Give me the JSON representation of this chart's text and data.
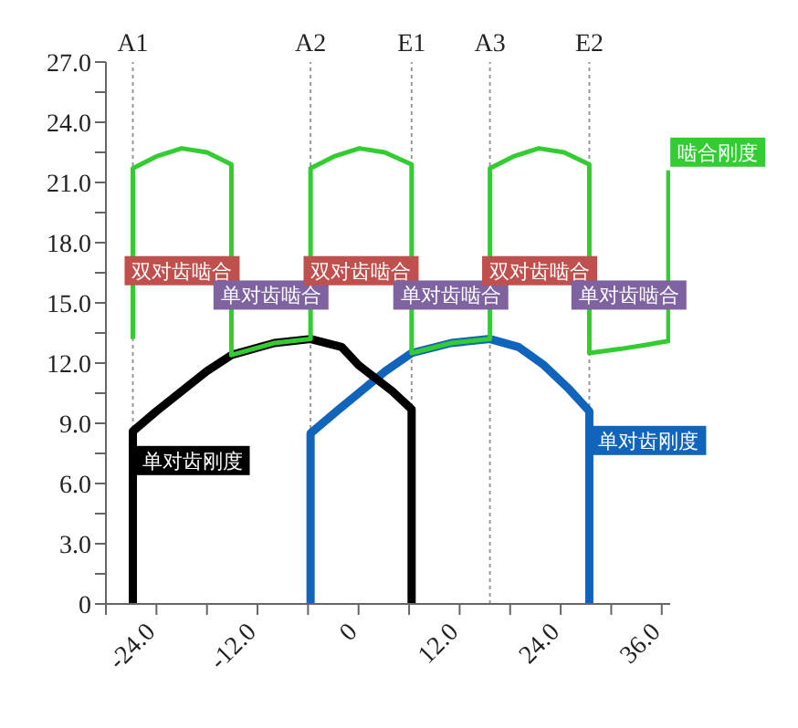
{
  "chart_data": {
    "type": "line",
    "xlim": [
      -30,
      37
    ],
    "ylim": [
      0,
      27
    ],
    "xticks": [
      {
        "value": -30,
        "label": null
      },
      {
        "value": -24,
        "label": "-24.0"
      },
      {
        "value": -18,
        "label": null
      },
      {
        "value": -12,
        "label": "-12.0"
      },
      {
        "value": -6,
        "label": null
      },
      0,
      {
        "value": 6,
        "label": null
      },
      {
        "value": 12,
        "label": "12.0"
      },
      {
        "value": 18,
        "label": null
      },
      {
        "value": 24,
        "label": "24.0"
      },
      {
        "value": 30,
        "label": null
      },
      {
        "value": 36,
        "label": "36.0"
      }
    ],
    "yticks": [
      0,
      {
        "value": 1.5,
        "label": null
      },
      {
        "value": 3,
        "label": "3.0"
      },
      {
        "value": 4.5,
        "label": null
      },
      {
        "value": 6,
        "label": "6.0"
      },
      {
        "value": 7.5,
        "label": null
      },
      {
        "value": 9,
        "label": "9.0"
      },
      {
        "value": 10.5,
        "label": null
      },
      {
        "value": 12,
        "label": "12.0"
      },
      {
        "value": 13.5,
        "label": null
      },
      {
        "value": 15,
        "label": "15.0"
      },
      {
        "value": 16.5,
        "label": null
      },
      {
        "value": 18,
        "label": "18.0"
      },
      {
        "value": 19.5,
        "label": null
      },
      {
        "value": 21,
        "label": "21.0"
      },
      {
        "value": 22.5,
        "label": null
      },
      {
        "value": 24,
        "label": "24.0"
      },
      {
        "value": 25.5,
        "label": null
      },
      {
        "value": 27,
        "label": "27.0"
      }
    ],
    "marker": "none",
    "line_style": "solid",
    "series": [
      {
        "name": "啮合刚度",
        "color": "#33cc33",
        "x": [
          -26.8,
          -26.8,
          -24,
          -21,
          -18,
          -15.1,
          -15.1,
          -10,
          -5.7,
          -5.7,
          -2.9,
          0.1,
          3.1,
          6.3,
          6.3,
          11,
          15.6,
          15.6,
          18.4,
          21.4,
          24.4,
          27.4,
          27.4,
          31,
          34,
          36.8,
          36.8
        ],
        "values": [
          13.2,
          21.7,
          22.3,
          22.7,
          22.5,
          21.9,
          12.4,
          13.0,
          13.2,
          21.7,
          22.3,
          22.7,
          22.5,
          21.9,
          12.5,
          13.0,
          13.2,
          21.7,
          22.3,
          22.7,
          22.5,
          21.9,
          12.5,
          12.7,
          12.9,
          13.1,
          21.6
        ]
      },
      {
        "name": "单对齿刚度",
        "color": "#000000",
        "x": [
          -26.8,
          -26.8,
          -24,
          -21,
          -18,
          -15.1,
          -10,
          -5.7,
          -2,
          0,
          4,
          6.3,
          6.3
        ],
        "values": [
          0,
          8.6,
          9.6,
          10.6,
          11.6,
          12.4,
          13.0,
          13.2,
          12.8,
          11.9,
          10.6,
          9.7,
          0
        ]
      },
      {
        "name": "单对齿刚度",
        "color": "#1064bb",
        "x": [
          -5.7,
          -5.7,
          -2.6,
          0.3,
          3.2,
          6.3,
          11,
          15.6,
          19,
          22,
          25,
          27.4,
          27.4
        ],
        "values": [
          0,
          8.5,
          9.6,
          10.6,
          11.6,
          12.5,
          13.0,
          13.2,
          12.8,
          11.9,
          10.7,
          9.6,
          0
        ]
      }
    ],
    "ref_lines": [
      {
        "axis": "x",
        "value": -26.8,
        "label": "A1",
        "color": "#999999",
        "line_style": "dotted"
      },
      {
        "axis": "x",
        "value": -5.7,
        "label": "A2",
        "color": "#999999",
        "line_style": "dotted"
      },
      {
        "axis": "x",
        "value": 6.3,
        "label": "E1",
        "color": "#999999",
        "line_style": "dotted"
      },
      {
        "axis": "x",
        "value": 15.6,
        "label": "A3",
        "color": "#999999",
        "line_style": "dotted"
      },
      {
        "axis": "x",
        "value": 27.4,
        "label": "E2",
        "color": "#999999",
        "line_style": "dotted"
      }
    ],
    "annotations": [
      "双对齿啮合",
      "单对齿啮合",
      "双对齿啮合",
      "单对齿啮合",
      "双对齿啮合",
      "单对齿啮合"
    ]
  }
}
